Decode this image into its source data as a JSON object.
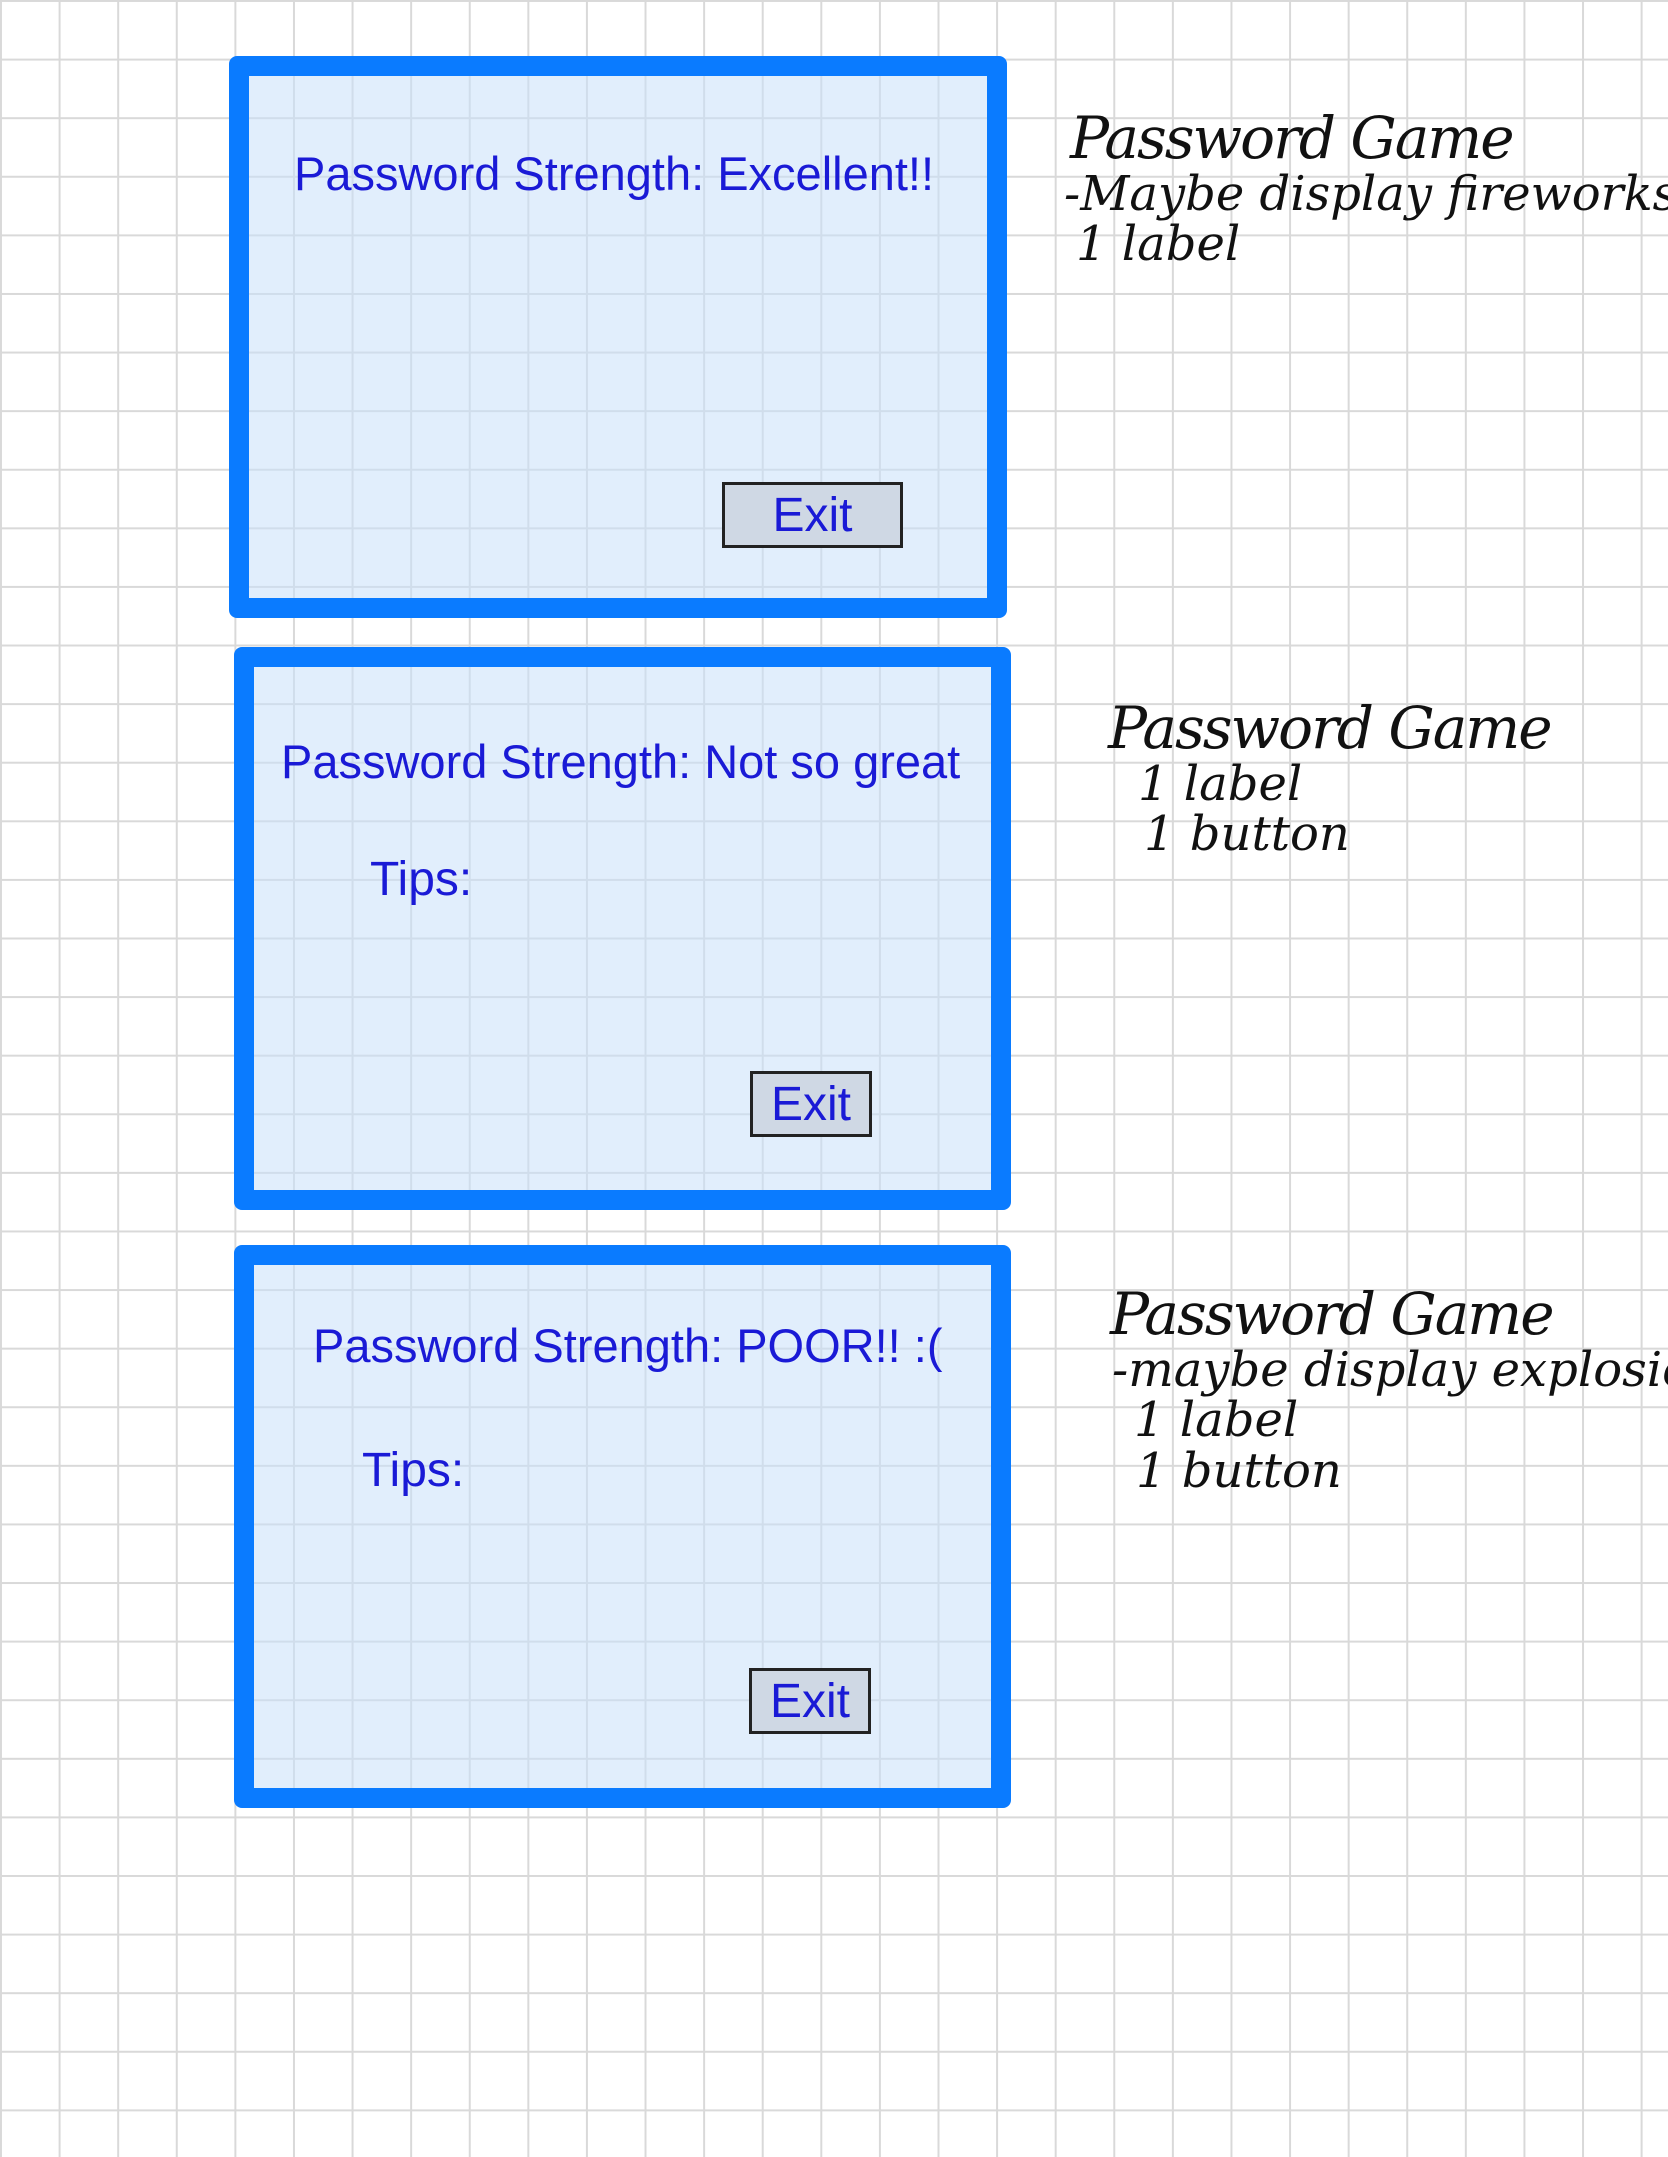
{
  "mockups": [
    {
      "title": "Password Strength: Excellent!!",
      "button": "Exit"
    },
    {
      "title": "Password Strength: Not so great",
      "tips_label": "Tips:",
      "button": "Exit"
    },
    {
      "title": "Password Strength: POOR!! :(",
      "tips_label": "Tips:",
      "button": "Exit"
    }
  ],
  "notes": [
    {
      "title": "Password Game",
      "lines": [
        "-Maybe display fireworks?",
        "1 label"
      ]
    },
    {
      "title": "Password Game",
      "lines": [
        "1 label",
        "1 button"
      ]
    },
    {
      "title": "Password Game",
      "lines": [
        "-maybe display explosion?",
        "1 label",
        "1 button"
      ]
    }
  ],
  "colors": {
    "panel_border": "#0a7bff",
    "panel_fill": "#dce9f9",
    "text": "#1a1ad6",
    "button_fill": "#cfd8e4",
    "grid": "#d9d9d9"
  }
}
